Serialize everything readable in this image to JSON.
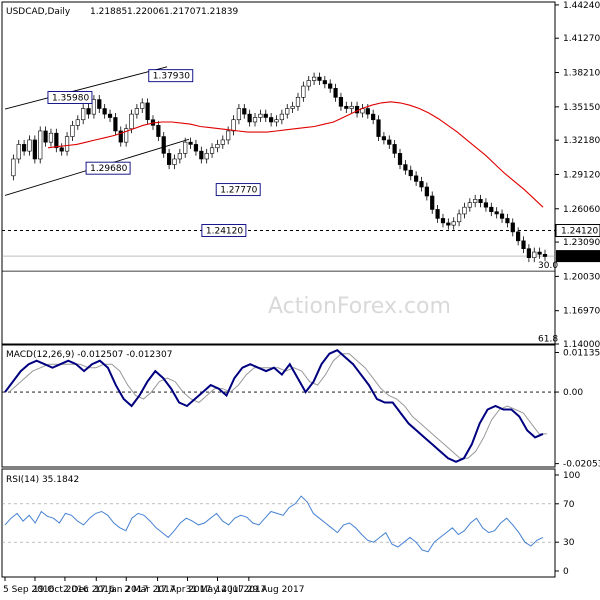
{
  "chart_data": [
    {
      "type": "candlestick",
      "title": "USDCAD,Daily",
      "ohlc": [
        "1.21885",
        "1.22006",
        "1.21707",
        "1.21839"
      ],
      "current_price": "1.21839",
      "ylim": [
        1.14,
        1.445
      ],
      "yticks": [
        1.4424,
        1.4127,
        1.3821,
        1.3515,
        1.3218,
        1.2912,
        1.2606,
        1.2309,
        1.2003,
        1.1697,
        1.14
      ],
      "ytick_labels": [
        "1.44240",
        "1.41270",
        "1.38210",
        "1.35150",
        "1.32180",
        "1.29120",
        "1.26060",
        "1.23090",
        "1.20030",
        "1.16970",
        "1.14000"
      ],
      "xtick_labels": [
        "5 Sep 2016",
        "19 Oct 2016",
        "2 Dec 2016",
        "17 Jan 2017",
        "2 Mar 2017",
        "17 Apr 2017",
        "31 May 2017",
        "14 Jul 2017",
        "29 Aug 2017"
      ],
      "watermark": "ActionForex.com",
      "annotations": [
        {
          "text": "1.35980",
          "price": 1.3598
        },
        {
          "text": "1.29680",
          "price": 1.2968
        },
        {
          "text": "1.37930",
          "price": 1.3793
        },
        {
          "text": "1.27770",
          "price": 1.2777
        },
        {
          "text": "1.24120",
          "price": 1.2412
        }
      ],
      "levels": [
        {
          "price": 1.2412,
          "label": "1.24120",
          "style": "dashed"
        },
        {
          "price": 1.205,
          "label": "30.0",
          "style": "solid"
        },
        {
          "price": 1.145,
          "label": "61.8",
          "style": "none"
        }
      ],
      "channel": {
        "upper": [
          {
            "date": "2016-09-05",
            "price": 1.3495
          },
          {
            "date": "2017-05-01",
            "price": 1.3872
          }
        ],
        "lower": [
          {
            "date": "2016-09-05",
            "price": 1.2725
          },
          {
            "date": "2017-06-02",
            "price": 1.3225
          }
        ]
      },
      "closes": [
        1.29,
        1.305,
        1.318,
        1.312,
        1.322,
        1.305,
        1.33,
        1.32,
        1.328,
        1.315,
        1.312,
        1.325,
        1.335,
        1.34,
        1.35,
        1.345,
        1.358,
        1.35,
        1.345,
        1.342,
        1.33,
        1.32,
        1.332,
        1.345,
        1.35,
        1.355,
        1.34,
        1.335,
        1.325,
        1.31,
        1.3,
        1.305,
        1.31,
        1.32,
        1.318,
        1.312,
        1.305,
        1.31,
        1.315,
        1.318,
        1.322,
        1.33,
        1.34,
        1.35,
        1.345,
        1.338,
        1.342,
        1.345,
        1.342,
        1.338,
        1.34,
        1.345,
        1.35,
        1.352,
        1.36,
        1.37,
        1.375,
        1.378,
        1.375,
        1.372,
        1.368,
        1.36,
        1.352,
        1.35,
        1.352,
        1.346,
        1.35,
        1.345,
        1.34,
        1.325,
        1.322,
        1.318,
        1.31,
        1.3,
        1.295,
        1.29,
        1.285,
        1.28,
        1.272,
        1.26,
        1.252,
        1.248,
        1.246,
        1.249,
        1.256,
        1.262,
        1.266,
        1.269,
        1.266,
        1.262,
        1.258,
        1.256,
        1.252,
        1.248,
        1.24,
        1.232,
        1.225,
        1.217,
        1.222,
        1.22,
        1.218
      ],
      "ma": [
        1.315,
        1.316,
        1.317,
        1.318,
        1.32,
        1.322,
        1.324,
        1.326,
        1.329,
        1.332,
        1.335,
        1.337,
        1.338,
        1.338,
        1.337,
        1.336,
        1.334,
        1.333,
        1.332,
        1.331,
        1.33,
        1.329,
        1.329,
        1.329,
        1.33,
        1.331,
        1.332,
        1.333,
        1.334,
        1.336,
        1.338,
        1.342,
        1.346,
        1.35,
        1.353,
        1.355,
        1.356,
        1.355,
        1.353,
        1.35,
        1.346,
        1.341,
        1.335,
        1.329,
        1.322,
        1.315,
        1.308,
        1.3,
        1.292,
        1.285,
        1.278,
        1.27,
        1.262
      ],
      "series": [
        {
          "name": "",
          "values": []
        }
      ]
    },
    {
      "type": "line",
      "title": "MACD(12,26,9) -0.012507 -0.012307",
      "ylim": [
        -0.0215,
        0.0135
      ],
      "yticks": [
        0.011355,
        0.0,
        -0.020531
      ],
      "ytick_labels": [
        "0.011355",
        "0.00",
        "-0.020531"
      ],
      "zero_line": 0.0,
      "macd": [
        0.0,
        0.003,
        0.006,
        0.008,
        0.009,
        0.008,
        0.007,
        0.008,
        0.009,
        0.008,
        0.006,
        0.008,
        0.009,
        0.007,
        0.002,
        -0.002,
        -0.004,
        -0.001,
        0.003,
        0.006,
        0.004,
        0.001,
        -0.003,
        -0.004,
        -0.002,
        0.0,
        0.002,
        0.001,
        -0.001,
        0.004,
        0.007,
        0.008,
        0.007,
        0.006,
        0.007,
        0.005,
        0.008,
        0.004,
        0.0,
        0.003,
        0.008,
        0.011,
        0.012,
        0.01,
        0.008,
        0.005,
        0.002,
        -0.002,
        -0.003,
        -0.003,
        -0.006,
        -0.009,
        -0.011,
        -0.013,
        -0.015,
        -0.017,
        -0.019,
        -0.02,
        -0.019,
        -0.015,
        -0.009,
        -0.005,
        -0.004,
        -0.005,
        -0.005,
        -0.007,
        -0.011,
        -0.013,
        -0.012
      ],
      "signal": [
        0.0,
        0.002,
        0.004,
        0.006,
        0.007,
        0.008,
        0.008,
        0.008,
        0.008,
        0.008,
        0.007,
        0.007,
        0.008,
        0.008,
        0.006,
        0.002,
        -0.001,
        -0.002,
        0.0,
        0.003,
        0.004,
        0.003,
        0.0,
        -0.002,
        -0.003,
        -0.001,
        0.001,
        0.001,
        0.0,
        0.002,
        0.005,
        0.007,
        0.007,
        0.007,
        0.007,
        0.006,
        0.007,
        0.006,
        0.003,
        0.002,
        0.005,
        0.009,
        0.011,
        0.011,
        0.009,
        0.007,
        0.004,
        0.001,
        -0.001,
        -0.002,
        -0.004,
        -0.007,
        -0.009,
        -0.011,
        -0.013,
        -0.015,
        -0.017,
        -0.019,
        -0.019,
        -0.017,
        -0.013,
        -0.008,
        -0.005,
        -0.004,
        -0.005,
        -0.006,
        -0.009,
        -0.012,
        -0.012
      ]
    },
    {
      "type": "line",
      "title": "RSI(14) 35.1842",
      "ylim": [
        0,
        100
      ],
      "yticks": [
        100,
        70,
        30,
        0
      ],
      "ytick_labels": [
        "100",
        "70",
        "30",
        "0"
      ],
      "rsi": [
        48,
        55,
        60,
        52,
        58,
        50,
        62,
        57,
        55,
        50,
        60,
        58,
        52,
        48,
        55,
        60,
        62,
        58,
        50,
        45,
        42,
        55,
        60,
        58,
        52,
        45,
        40,
        35,
        42,
        50,
        55,
        52,
        48,
        50,
        55,
        60,
        52,
        48,
        55,
        58,
        56,
        50,
        48,
        55,
        62,
        60,
        58,
        66,
        70,
        78,
        72,
        60,
        55,
        50,
        45,
        40,
        48,
        50,
        45,
        38,
        32,
        30,
        35,
        40,
        28,
        25,
        30,
        35,
        30,
        22,
        20,
        30,
        35,
        40,
        45,
        38,
        42,
        50,
        55,
        45,
        40,
        42,
        50,
        55,
        48,
        40,
        30,
        26,
        32,
        35
      ]
    }
  ]
}
